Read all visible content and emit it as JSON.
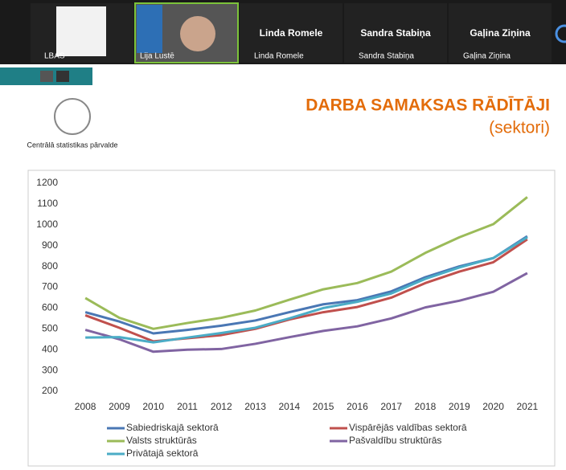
{
  "meeting": {
    "participants": [
      {
        "name": "LBAS"
      },
      {
        "name": "Lija Lustē"
      },
      {
        "name": "Linda Romele"
      },
      {
        "name": "Sandra Stabiņa"
      },
      {
        "name": "Gaļina Ziņina"
      }
    ]
  },
  "slide": {
    "logo_text": "Centrālā statistikas pārvalde",
    "title": "DARBA SAMAKSAS RĀDĪTĀJI",
    "subtitle": "(sektori)"
  },
  "chart_data": {
    "type": "line",
    "categories": [
      "2008",
      "2009",
      "2010",
      "2011",
      "2012",
      "2013",
      "2014",
      "2015",
      "2016",
      "2017",
      "2018",
      "2019",
      "2020",
      "2021"
    ],
    "ylim": [
      200,
      1200
    ],
    "yticks": [
      200,
      300,
      400,
      500,
      600,
      700,
      800,
      900,
      1000,
      1100,
      1200
    ],
    "grid": false,
    "series": [
      {
        "name": "Sabiedriskajā sektorā",
        "color": "#4a77b4",
        "values": [
          580,
          535,
          478,
          495,
          515,
          540,
          580,
          618,
          638,
          680,
          748,
          800,
          840,
          945
        ]
      },
      {
        "name": "Vispārējās valdības sektorā",
        "color": "#c0504d",
        "values": [
          565,
          505,
          440,
          455,
          470,
          500,
          545,
          580,
          605,
          650,
          720,
          775,
          820,
          930
        ]
      },
      {
        "name": "Valsts struktūrās",
        "color": "#9bbb59",
        "values": [
          648,
          553,
          500,
          528,
          553,
          588,
          640,
          690,
          720,
          775,
          865,
          940,
          1003,
          1133
        ]
      },
      {
        "name": "Pašvaldību struktūrās",
        "color": "#8064a2",
        "values": [
          495,
          450,
          390,
          400,
          403,
          428,
          460,
          490,
          512,
          550,
          603,
          635,
          678,
          768
        ]
      },
      {
        "name": "Privātajā sektorā",
        "color": "#4bacc6",
        "values": [
          458,
          460,
          435,
          458,
          480,
          505,
          550,
          600,
          630,
          670,
          740,
          795,
          840,
          940
        ]
      }
    ]
  }
}
